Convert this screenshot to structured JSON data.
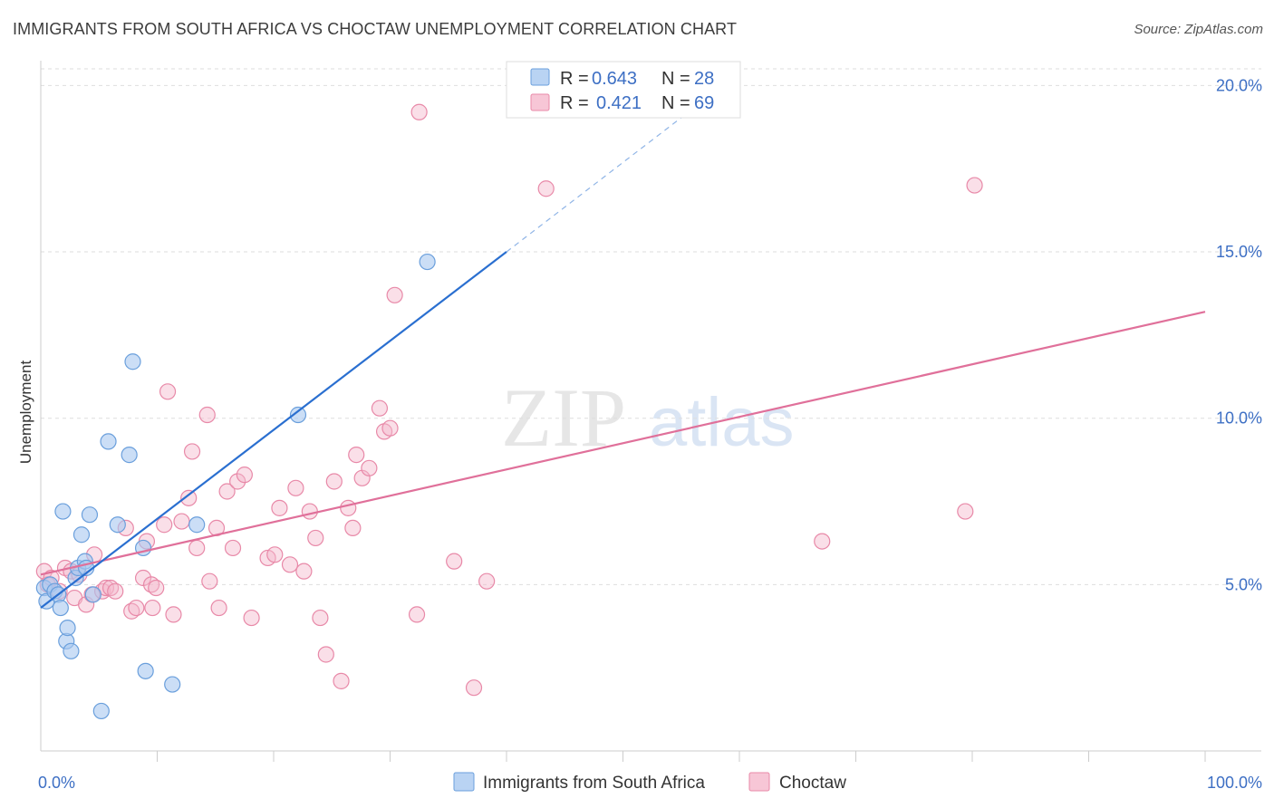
{
  "header": {
    "title": "IMMIGRANTS FROM SOUTH AFRICA VS CHOCTAW UNEMPLOYMENT CORRELATION CHART",
    "source": "Source: ZipAtlas.com"
  },
  "watermark": {
    "zip": "ZIP",
    "atlas": "atlas"
  },
  "legend_top": {
    "rows": [
      {
        "r_label": "R =",
        "r_value": "0.643",
        "n_label": "N =",
        "n_value": "28",
        "color": "#a8c8f0"
      },
      {
        "r_label": "R =",
        "r_value": "0.421",
        "n_label": "N =",
        "n_value": "69",
        "color": "#f5b8cc"
      }
    ]
  },
  "chart_data": {
    "type": "scatter",
    "ylabel": "Unemployment",
    "xlim": [
      0,
      100
    ],
    "ylim": [
      0,
      20.8
    ],
    "x_tick_labels": [
      "0.0%",
      "100.0%"
    ],
    "y_ticks": [
      5,
      10,
      15,
      20
    ],
    "y_tick_labels": [
      "5.0%",
      "10.0%",
      "15.0%",
      "20.0%"
    ],
    "grid": true,
    "legend_placement": "bottom-center",
    "series": [
      {
        "name": "Immigrants from South Africa",
        "color": "#a8c8f0",
        "stroke": "#6a9fdc",
        "line_color": "#2a6fd0",
        "trend": {
          "x0": 0,
          "y0": 4.3,
          "x1": 40,
          "y1": 15.0,
          "dash_x1": 56,
          "dash_y1": 19.3
        },
        "points": [
          [
            0.3,
            4.9
          ],
          [
            0.5,
            4.5
          ],
          [
            0.8,
            5.0
          ],
          [
            1.2,
            4.8
          ],
          [
            1.5,
            4.7
          ],
          [
            1.7,
            4.3
          ],
          [
            1.9,
            7.2
          ],
          [
            2.2,
            3.3
          ],
          [
            2.3,
            3.7
          ],
          [
            2.6,
            3.0
          ],
          [
            3.0,
            5.2
          ],
          [
            3.2,
            5.5
          ],
          [
            3.5,
            6.5
          ],
          [
            3.8,
            5.7
          ],
          [
            3.9,
            5.5
          ],
          [
            4.2,
            7.1
          ],
          [
            4.5,
            4.7
          ],
          [
            5.2,
            1.2
          ],
          [
            5.8,
            9.3
          ],
          [
            6.6,
            6.8
          ],
          [
            7.6,
            8.9
          ],
          [
            7.9,
            11.7
          ],
          [
            8.8,
            6.1
          ],
          [
            9.0,
            2.4
          ],
          [
            11.3,
            2.0
          ],
          [
            13.4,
            6.8
          ],
          [
            22.1,
            10.1
          ],
          [
            33.2,
            14.7
          ]
        ]
      },
      {
        "name": "Choctaw",
        "color": "#f5b8cc",
        "stroke": "#e889a8",
        "line_color": "#e0709a",
        "trend": {
          "x0": 0,
          "y0": 5.3,
          "x1": 100,
          "y1": 13.2
        },
        "points": [
          [
            0.3,
            5.4
          ],
          [
            0.6,
            5.0
          ],
          [
            0.9,
            5.2
          ],
          [
            1.6,
            4.8
          ],
          [
            2.1,
            5.5
          ],
          [
            2.6,
            5.4
          ],
          [
            2.9,
            4.6
          ],
          [
            3.3,
            5.3
          ],
          [
            3.9,
            4.4
          ],
          [
            4.4,
            4.7
          ],
          [
            4.6,
            5.9
          ],
          [
            5.3,
            4.8
          ],
          [
            5.6,
            4.9
          ],
          [
            6.0,
            4.9
          ],
          [
            6.4,
            4.8
          ],
          [
            7.3,
            6.7
          ],
          [
            7.8,
            4.2
          ],
          [
            8.2,
            4.3
          ],
          [
            8.8,
            5.2
          ],
          [
            9.1,
            6.3
          ],
          [
            9.5,
            5.0
          ],
          [
            9.6,
            4.3
          ],
          [
            9.9,
            4.9
          ],
          [
            10.6,
            6.8
          ],
          [
            10.9,
            10.8
          ],
          [
            11.4,
            4.1
          ],
          [
            12.1,
            6.9
          ],
          [
            12.7,
            7.6
          ],
          [
            13.0,
            9.0
          ],
          [
            13.4,
            6.1
          ],
          [
            14.3,
            10.1
          ],
          [
            14.5,
            5.1
          ],
          [
            15.1,
            6.7
          ],
          [
            15.3,
            4.3
          ],
          [
            16.0,
            7.8
          ],
          [
            16.5,
            6.1
          ],
          [
            16.9,
            8.1
          ],
          [
            17.5,
            8.3
          ],
          [
            18.1,
            4.0
          ],
          [
            19.5,
            5.8
          ],
          [
            20.1,
            5.9
          ],
          [
            20.5,
            7.3
          ],
          [
            21.4,
            5.6
          ],
          [
            21.9,
            7.9
          ],
          [
            22.6,
            5.4
          ],
          [
            23.1,
            7.2
          ],
          [
            23.6,
            6.4
          ],
          [
            24.0,
            4.0
          ],
          [
            24.5,
            2.9
          ],
          [
            25.2,
            8.1
          ],
          [
            25.8,
            2.1
          ],
          [
            26.4,
            7.3
          ],
          [
            26.8,
            6.7
          ],
          [
            27.1,
            8.9
          ],
          [
            27.6,
            8.2
          ],
          [
            28.2,
            8.5
          ],
          [
            29.1,
            10.3
          ],
          [
            29.5,
            9.6
          ],
          [
            30.0,
            9.7
          ],
          [
            30.4,
            13.7
          ],
          [
            32.3,
            4.1
          ],
          [
            32.5,
            19.2
          ],
          [
            35.5,
            5.7
          ],
          [
            37.2,
            1.9
          ],
          [
            38.3,
            5.1
          ],
          [
            43.4,
            16.9
          ],
          [
            67.1,
            6.3
          ],
          [
            79.4,
            7.2
          ],
          [
            80.2,
            17.0
          ]
        ]
      }
    ]
  }
}
